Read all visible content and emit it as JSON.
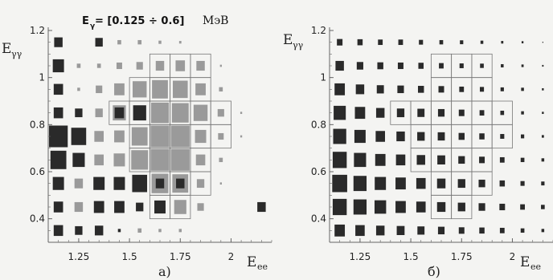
{
  "chart_data": [
    {
      "type": "heatmap",
      "panel_label": "а)",
      "title": {
        "main": "E",
        "sub": "γ",
        "range": " = [0.125 ÷ 0.6]",
        "unit": "МэВ"
      },
      "xlabel": {
        "main": "E",
        "sub": "ee"
      },
      "ylabel": {
        "main": "E",
        "sub": "γγ"
      },
      "xlim": [
        1.1,
        2.2
      ],
      "ylim": [
        0.3,
        1.2
      ],
      "xticks": [
        "1.25",
        "1.5",
        "1.75",
        "2"
      ],
      "yticks": [
        "0.4",
        "0.6",
        "0.8",
        "1",
        "1.2"
      ],
      "x_centers": [
        1.15,
        1.25,
        1.35,
        1.45,
        1.55,
        1.65,
        1.75,
        1.85,
        1.95,
        2.05,
        2.15
      ],
      "y_centers": [
        0.35,
        0.45,
        0.55,
        0.65,
        0.75,
        0.85,
        0.95,
        1.05,
        1.15
      ],
      "cells": [
        {
          "x": 1.15,
          "y": 1.15,
          "size": 0.45,
          "shade": "dark"
        },
        {
          "x": 1.35,
          "y": 1.15,
          "size": 0.4,
          "shade": "dark"
        },
        {
          "x": 1.45,
          "y": 1.15,
          "size": 0.2,
          "shade": "light"
        },
        {
          "x": 1.55,
          "y": 1.15,
          "size": 0.2,
          "shade": "light"
        },
        {
          "x": 1.65,
          "y": 1.15,
          "size": 0.15,
          "shade": "light"
        },
        {
          "x": 1.75,
          "y": 1.15,
          "size": 0.12,
          "shade": "light"
        },
        {
          "x": 1.15,
          "y": 1.05,
          "size": 0.6,
          "shade": "dark"
        },
        {
          "x": 1.25,
          "y": 1.05,
          "size": 0.2,
          "shade": "light"
        },
        {
          "x": 1.35,
          "y": 1.05,
          "size": 0.2,
          "shade": "light"
        },
        {
          "x": 1.45,
          "y": 1.05,
          "size": 0.3,
          "shade": "light"
        },
        {
          "x": 1.55,
          "y": 1.05,
          "size": 0.35,
          "shade": "light"
        },
        {
          "x": 1.65,
          "y": 1.05,
          "size": 0.45,
          "shade": "light"
        },
        {
          "x": 1.75,
          "y": 1.05,
          "size": 0.5,
          "shade": "light"
        },
        {
          "x": 1.85,
          "y": 1.05,
          "size": 0.45,
          "shade": "light"
        },
        {
          "x": 1.95,
          "y": 1.05,
          "size": 0.1,
          "shade": "light"
        },
        {
          "x": 1.15,
          "y": 0.95,
          "size": 0.5,
          "shade": "dark"
        },
        {
          "x": 1.25,
          "y": 0.95,
          "size": 0.15,
          "shade": "light"
        },
        {
          "x": 1.35,
          "y": 0.95,
          "size": 0.35,
          "shade": "light"
        },
        {
          "x": 1.45,
          "y": 0.95,
          "size": 0.55,
          "shade": "light"
        },
        {
          "x": 1.55,
          "y": 0.95,
          "size": 0.75,
          "shade": "light"
        },
        {
          "x": 1.65,
          "y": 0.95,
          "size": 0.85,
          "shade": "light"
        },
        {
          "x": 1.75,
          "y": 0.95,
          "size": 0.8,
          "shade": "light"
        },
        {
          "x": 1.85,
          "y": 0.95,
          "size": 0.55,
          "shade": "light"
        },
        {
          "x": 1.95,
          "y": 0.95,
          "size": 0.2,
          "shade": "light"
        },
        {
          "x": 1.15,
          "y": 0.85,
          "size": 0.5,
          "shade": "dark"
        },
        {
          "x": 1.25,
          "y": 0.85,
          "size": 0.4,
          "shade": "dark"
        },
        {
          "x": 1.35,
          "y": 0.85,
          "size": 0.4,
          "shade": "light"
        },
        {
          "x": 1.45,
          "y": 0.85,
          "size": 0.7,
          "shade": "light"
        },
        {
          "x": 1.55,
          "y": 0.85,
          "size": 0.7,
          "shade": "dark"
        },
        {
          "x": 1.65,
          "y": 0.85,
          "size": 0.95,
          "shade": "light"
        },
        {
          "x": 1.75,
          "y": 0.85,
          "size": 0.9,
          "shade": "light"
        },
        {
          "x": 1.85,
          "y": 0.85,
          "size": 0.75,
          "shade": "light"
        },
        {
          "x": 1.95,
          "y": 0.85,
          "size": 0.35,
          "shade": "light"
        },
        {
          "x": 2.05,
          "y": 0.85,
          "size": 0.1,
          "shade": "light"
        },
        {
          "x": 1.15,
          "y": 0.75,
          "size": 1.0,
          "shade": "dark"
        },
        {
          "x": 1.25,
          "y": 0.75,
          "size": 0.8,
          "shade": "dark"
        },
        {
          "x": 1.35,
          "y": 0.75,
          "size": 0.5,
          "shade": "light"
        },
        {
          "x": 1.45,
          "y": 0.75,
          "size": 0.55,
          "shade": "light"
        },
        {
          "x": 1.55,
          "y": 0.75,
          "size": 0.85,
          "shade": "light"
        },
        {
          "x": 1.65,
          "y": 0.75,
          "size": 1.0,
          "shade": "light"
        },
        {
          "x": 1.75,
          "y": 0.75,
          "size": 1.0,
          "shade": "light"
        },
        {
          "x": 1.85,
          "y": 0.75,
          "size": 0.6,
          "shade": "light"
        },
        {
          "x": 1.95,
          "y": 0.75,
          "size": 0.3,
          "shade": "light"
        },
        {
          "x": 2.05,
          "y": 0.75,
          "size": 0.1,
          "shade": "light"
        },
        {
          "x": 1.15,
          "y": 0.65,
          "size": 0.85,
          "shade": "dark"
        },
        {
          "x": 1.25,
          "y": 0.65,
          "size": 0.65,
          "shade": "dark"
        },
        {
          "x": 1.35,
          "y": 0.65,
          "size": 0.5,
          "shade": "light"
        },
        {
          "x": 1.45,
          "y": 0.65,
          "size": 0.6,
          "shade": "light"
        },
        {
          "x": 1.55,
          "y": 0.65,
          "size": 0.9,
          "shade": "light"
        },
        {
          "x": 1.65,
          "y": 0.65,
          "size": 1.0,
          "shade": "light"
        },
        {
          "x": 1.75,
          "y": 0.65,
          "size": 1.0,
          "shade": "light"
        },
        {
          "x": 1.85,
          "y": 0.65,
          "size": 0.5,
          "shade": "light"
        },
        {
          "x": 1.95,
          "y": 0.65,
          "size": 0.2,
          "shade": "light"
        },
        {
          "x": 1.15,
          "y": 0.55,
          "size": 0.6,
          "shade": "dark"
        },
        {
          "x": 1.25,
          "y": 0.55,
          "size": 0.45,
          "shade": "light"
        },
        {
          "x": 1.35,
          "y": 0.55,
          "size": 0.6,
          "shade": "dark"
        },
        {
          "x": 1.45,
          "y": 0.55,
          "size": 0.6,
          "shade": "dark"
        },
        {
          "x": 1.55,
          "y": 0.55,
          "size": 0.8,
          "shade": "dark"
        },
        {
          "x": 1.65,
          "y": 0.55,
          "size": 0.9,
          "shade": "light"
        },
        {
          "x": 1.75,
          "y": 0.55,
          "size": 0.85,
          "shade": "light"
        },
        {
          "x": 1.85,
          "y": 0.55,
          "size": 0.4,
          "shade": "light"
        },
        {
          "x": 1.95,
          "y": 0.55,
          "size": 0.1,
          "shade": "light"
        },
        {
          "x": 1.15,
          "y": 0.45,
          "size": 0.5,
          "shade": "dark"
        },
        {
          "x": 1.25,
          "y": 0.45,
          "size": 0.45,
          "shade": "light"
        },
        {
          "x": 1.35,
          "y": 0.45,
          "size": 0.55,
          "shade": "dark"
        },
        {
          "x": 1.45,
          "y": 0.45,
          "size": 0.55,
          "shade": "dark"
        },
        {
          "x": 1.55,
          "y": 0.45,
          "size": 0.4,
          "shade": "dark"
        },
        {
          "x": 1.65,
          "y": 0.45,
          "size": 0.6,
          "shade": "dark"
        },
        {
          "x": 1.75,
          "y": 0.45,
          "size": 0.65,
          "shade": "light"
        },
        {
          "x": 1.85,
          "y": 0.45,
          "size": 0.35,
          "shade": "light"
        },
        {
          "x": 2.15,
          "y": 0.45,
          "size": 0.45,
          "shade": "dark"
        },
        {
          "x": 1.15,
          "y": 0.35,
          "size": 0.5,
          "shade": "dark"
        },
        {
          "x": 1.25,
          "y": 0.35,
          "size": 0.4,
          "shade": "dark"
        },
        {
          "x": 1.35,
          "y": 0.35,
          "size": 0.45,
          "shade": "dark"
        },
        {
          "x": 1.45,
          "y": 0.35,
          "size": 0.15,
          "shade": "dark"
        },
        {
          "x": 1.55,
          "y": 0.35,
          "size": 0.2,
          "shade": "light"
        },
        {
          "x": 1.65,
          "y": 0.35,
          "size": 0.15,
          "shade": "light"
        },
        {
          "x": 1.75,
          "y": 0.35,
          "size": 0.15,
          "shade": "light"
        }
      ],
      "highlight_overlays": [
        {
          "x": 1.45,
          "y": 0.85,
          "size": 0.5,
          "shade": "dark"
        },
        {
          "x": 1.55,
          "y": 0.85,
          "size": 0.45,
          "shade": "dark"
        },
        {
          "x": 1.65,
          "y": 0.55,
          "size": 0.45,
          "shade": "dark"
        },
        {
          "x": 1.75,
          "y": 0.55,
          "size": 0.45,
          "shade": "dark"
        }
      ],
      "outlined_cells": [
        [
          1.65,
          1.05
        ],
        [
          1.75,
          1.05
        ],
        [
          1.85,
          1.05
        ],
        [
          1.55,
          0.95
        ],
        [
          1.65,
          0.95
        ],
        [
          1.75,
          0.95
        ],
        [
          1.85,
          0.95
        ],
        [
          1.45,
          0.85
        ],
        [
          1.55,
          0.85
        ],
        [
          1.65,
          0.85
        ],
        [
          1.75,
          0.85
        ],
        [
          1.85,
          0.85
        ],
        [
          1.95,
          0.85
        ],
        [
          1.55,
          0.75
        ],
        [
          1.65,
          0.75
        ],
        [
          1.75,
          0.75
        ],
        [
          1.85,
          0.75
        ],
        [
          1.95,
          0.75
        ],
        [
          1.55,
          0.65
        ],
        [
          1.65,
          0.65
        ],
        [
          1.75,
          0.65
        ],
        [
          1.85,
          0.65
        ],
        [
          1.65,
          0.55
        ],
        [
          1.75,
          0.55
        ],
        [
          1.85,
          0.55
        ],
        [
          1.65,
          0.45
        ],
        [
          1.75,
          0.45
        ]
      ]
    },
    {
      "type": "heatmap",
      "panel_label": "б)",
      "xlabel": {
        "main": "E",
        "sub": "ee"
      },
      "ylabel": {
        "main": "E",
        "sub": "γγ"
      },
      "xlim": [
        1.1,
        2.2
      ],
      "ylim": [
        0.3,
        1.2
      ],
      "xticks": [
        "1.25",
        "1.5",
        "1.75",
        "2"
      ],
      "yticks": [
        "0.4",
        "0.6",
        "0.8",
        "1",
        "1.2"
      ],
      "x_centers": [
        1.15,
        1.25,
        1.35,
        1.45,
        1.55,
        1.65,
        1.75,
        1.85,
        1.95,
        2.05,
        2.15
      ],
      "y_centers": [
        0.35,
        0.45,
        0.55,
        0.65,
        0.75,
        0.85,
        0.95,
        1.05,
        1.15
      ],
      "row_sizes": {
        "1.15": [
          0.3,
          0.28,
          0.25,
          0.25,
          0.22,
          0.2,
          0.18,
          0.15,
          0.12,
          0.1,
          0.05
        ],
        "1.05": [
          0.45,
          0.35,
          0.32,
          0.3,
          0.28,
          0.25,
          0.22,
          0.2,
          0.15,
          0.12,
          0.08
        ],
        "0.95": [
          0.55,
          0.45,
          0.38,
          0.35,
          0.32,
          0.3,
          0.25,
          0.22,
          0.18,
          0.15,
          0.1
        ],
        "0.85": [
          0.65,
          0.55,
          0.45,
          0.4,
          0.38,
          0.35,
          0.3,
          0.25,
          0.2,
          0.15,
          0.1
        ],
        "0.75": [
          0.7,
          0.6,
          0.5,
          0.45,
          0.4,
          0.38,
          0.32,
          0.28,
          0.22,
          0.18,
          0.12
        ],
        "0.65": [
          0.75,
          0.65,
          0.55,
          0.5,
          0.45,
          0.42,
          0.35,
          0.3,
          0.25,
          0.2,
          0.15
        ],
        "0.55": [
          0.8,
          0.7,
          0.6,
          0.55,
          0.5,
          0.45,
          0.4,
          0.35,
          0.28,
          0.22,
          0.18
        ],
        "0.45": [
          0.75,
          0.7,
          0.62,
          0.55,
          0.5,
          0.45,
          0.4,
          0.35,
          0.3,
          0.25,
          0.2
        ],
        "0.35": [
          0.55,
          0.5,
          0.45,
          0.42,
          0.38,
          0.35,
          0.3,
          0.28,
          0.25,
          0.2,
          0.15
        ]
      },
      "outlined_cells": [
        [
          1.65,
          1.05
        ],
        [
          1.75,
          1.05
        ],
        [
          1.85,
          1.05
        ],
        [
          1.65,
          0.95
        ],
        [
          1.75,
          0.95
        ],
        [
          1.85,
          0.95
        ],
        [
          1.45,
          0.85
        ],
        [
          1.55,
          0.85
        ],
        [
          1.65,
          0.85
        ],
        [
          1.75,
          0.85
        ],
        [
          1.85,
          0.85
        ],
        [
          1.95,
          0.85
        ],
        [
          1.55,
          0.75
        ],
        [
          1.65,
          0.75
        ],
        [
          1.75,
          0.75
        ],
        [
          1.85,
          0.75
        ],
        [
          1.95,
          0.75
        ],
        [
          1.55,
          0.65
        ],
        [
          1.65,
          0.65
        ],
        [
          1.75,
          0.65
        ],
        [
          1.85,
          0.65
        ],
        [
          1.65,
          0.55
        ],
        [
          1.75,
          0.55
        ],
        [
          1.85,
          0.55
        ],
        [
          1.65,
          0.45
        ],
        [
          1.75,
          0.45
        ]
      ]
    }
  ],
  "colors": {
    "dark": "#2a2a2a",
    "light": "#9a9a9a",
    "outline": "#777777",
    "axis": "#666666"
  }
}
